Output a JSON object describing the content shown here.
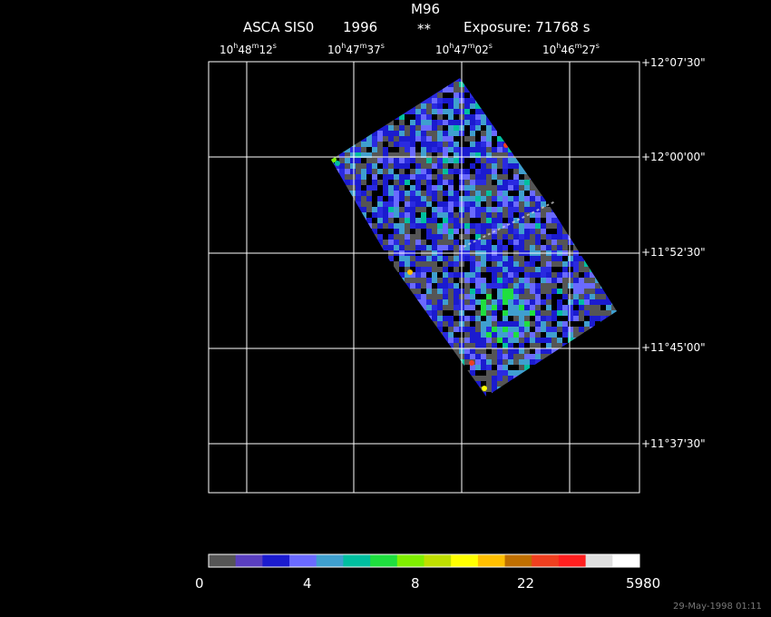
{
  "header": {
    "object": "M96",
    "instrument": "ASCA SIS0",
    "year": "1996",
    "stars": "**",
    "exposure": "Exposure: 71768 s"
  },
  "ra_labels": [
    {
      "h": "10",
      "m": "48",
      "s": "12"
    },
    {
      "h": "10",
      "m": "47",
      "s": "37"
    },
    {
      "h": "10",
      "m": "47",
      "s": "02"
    },
    {
      "h": "10",
      "m": "46",
      "s": "27"
    }
  ],
  "dec_labels": [
    "+12°07'30\"",
    "+12°00'00\"",
    "+11°52'30\"",
    "+11°45'00\"",
    "+11°37'30\""
  ],
  "colorbar": {
    "colors": [
      "#555555",
      "#5a3fbf",
      "#1b1bcf",
      "#6a6aff",
      "#3f9fcf",
      "#00bf9f",
      "#1fdf3f",
      "#7fef00",
      "#bfdf00",
      "#ffff00",
      "#ffbf00",
      "#bf6f00",
      "#ef3f1f",
      "#ff1f1f",
      "#dfdfdf",
      "#ffffff"
    ],
    "labels": [
      "0",
      "4",
      "8",
      "22",
      "5980"
    ]
  },
  "timestamp": "29-May-1998 01:11"
}
